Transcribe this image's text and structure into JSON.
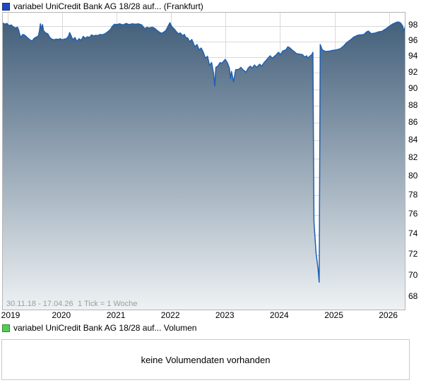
{
  "price_chart": {
    "legend": {
      "label": "variabel UniCredit Bank AG 18/28 auf... (Frankfurt)",
      "marker_color": "#2247c5",
      "marker_border": "#15307d"
    },
    "footer": {
      "period": "30.11.18 - 17.04.26",
      "tick_info": "1 Tick = 1 Woche"
    }
  },
  "volume_chart": {
    "legend": {
      "label": "variabel UniCredit Bank AG 18/28 auf... Volumen",
      "marker_color": "#57c957",
      "marker_border": "#2e8b2e"
    },
    "message": "keine Volumendaten vorhanden"
  },
  "chart_data": {
    "type": "line",
    "title": "variabel UniCredit Bank AG 18/28 auf... (Frankfurt)",
    "subtitle": "",
    "legend_position": "top-left",
    "grid": true,
    "x_axis": {
      "tick_labels": [
        "2019",
        "2020",
        "2021",
        "2022",
        "2023",
        "2024",
        "2025",
        "2026"
      ],
      "start_date": "30.11.18",
      "end_date": "17.04.26",
      "tick_interval": "1 Woche",
      "total_days": 2695
    },
    "y_axis": {
      "tick_labels": [
        98,
        96,
        94,
        92,
        90,
        88,
        86,
        84,
        82,
        80,
        78,
        76,
        74,
        72,
        70,
        68
      ],
      "scale": "log",
      "position": "right",
      "visible_range": [
        66.9,
        99.8
      ]
    },
    "line_color": "#2060b2",
    "fill_gradient_top": "#3e5b77",
    "fill_gradient_bottom": "#eef2f4",
    "grid_color": "#d9d9d9",
    "series": [
      {
        "name": "variabel UniCredit Bank AG 18/28 auf...",
        "x_unit": "weeks_since_30.11.18",
        "points": [
          [
            0,
            98.4
          ],
          [
            2,
            98.25
          ],
          [
            4,
            98.35
          ],
          [
            6,
            98.05
          ],
          [
            8,
            98.15
          ],
          [
            10,
            97.9
          ],
          [
            12,
            97.75
          ],
          [
            14,
            97.85
          ],
          [
            15,
            97.55
          ],
          [
            17,
            96.5
          ],
          [
            19,
            96.9
          ],
          [
            21,
            96.8
          ],
          [
            23,
            96.55
          ],
          [
            26,
            96.2
          ],
          [
            28,
            96.05
          ],
          [
            30,
            96.4
          ],
          [
            32,
            96.55
          ],
          [
            34,
            96.7
          ],
          [
            35,
            97.3
          ],
          [
            36,
            98.3
          ],
          [
            37,
            97.6
          ],
          [
            38,
            98.2
          ],
          [
            39,
            97.4
          ],
          [
            41,
            97.1
          ],
          [
            43,
            97.0
          ],
          [
            45,
            96.5
          ],
          [
            47,
            96.3
          ],
          [
            49,
            96.2
          ],
          [
            51,
            96.3
          ],
          [
            53,
            96.25
          ],
          [
            55,
            96.35
          ],
          [
            57,
            96.2
          ],
          [
            59,
            96.3
          ],
          [
            61,
            96.35
          ],
          [
            63,
            96.7
          ],
          [
            64,
            97.15
          ],
          [
            66,
            96.55
          ],
          [
            67,
            96.2
          ],
          [
            69,
            96.5
          ],
          [
            71,
            96.0
          ],
          [
            73,
            96.35
          ],
          [
            75,
            96.15
          ],
          [
            77,
            96.65
          ],
          [
            79,
            96.4
          ],
          [
            81,
            96.6
          ],
          [
            83,
            96.5
          ],
          [
            85,
            96.85
          ],
          [
            87,
            96.7
          ],
          [
            89,
            96.8
          ],
          [
            91,
            96.75
          ],
          [
            93,
            96.9
          ],
          [
            95,
            96.85
          ],
          [
            98,
            97.0
          ],
          [
            101,
            97.3
          ],
          [
            103,
            97.55
          ],
          [
            105,
            98.0
          ],
          [
            107,
            98.25
          ],
          [
            109,
            98.2
          ],
          [
            112,
            98.3
          ],
          [
            115,
            98.15
          ],
          [
            118,
            98.35
          ],
          [
            121,
            98.2
          ],
          [
            124,
            98.3
          ],
          [
            127,
            98.25
          ],
          [
            130,
            98.3
          ],
          [
            133,
            98.15
          ],
          [
            136,
            97.65
          ],
          [
            138,
            97.85
          ],
          [
            140,
            97.75
          ],
          [
            143,
            97.85
          ],
          [
            145,
            97.75
          ],
          [
            148,
            97.4
          ],
          [
            150,
            97.2
          ],
          [
            152,
            97.05
          ],
          [
            154,
            97.2
          ],
          [
            156,
            97.4
          ],
          [
            158,
            97.9
          ],
          [
            160,
            98.45
          ],
          [
            162,
            97.9
          ],
          [
            164,
            97.65
          ],
          [
            166,
            97.3
          ],
          [
            168,
            97.0
          ],
          [
            170,
            97.1
          ],
          [
            172,
            96.75
          ],
          [
            174,
            96.9
          ],
          [
            175,
            96.55
          ],
          [
            177,
            96.45
          ],
          [
            179,
            95.95
          ],
          [
            181,
            96.25
          ],
          [
            183,
            95.6
          ],
          [
            184,
            95.3
          ],
          [
            186,
            95.6
          ],
          [
            188,
            94.9
          ],
          [
            190,
            95.15
          ],
          [
            192,
            94.6
          ],
          [
            194,
            93.85
          ],
          [
            196,
            94.1
          ],
          [
            198,
            92.95
          ],
          [
            200,
            93.3
          ],
          [
            202,
            91.8
          ],
          [
            203,
            90.4
          ],
          [
            204,
            92.7
          ],
          [
            206,
            92.85
          ],
          [
            208,
            93.3
          ],
          [
            210,
            93.2
          ],
          [
            211,
            93.4
          ],
          [
            213,
            93.7
          ],
          [
            215,
            93.3
          ],
          [
            217,
            92.6
          ],
          [
            218,
            91.3
          ],
          [
            219,
            92.2
          ],
          [
            221,
            90.9
          ],
          [
            223,
            92.4
          ],
          [
            226,
            92.45
          ],
          [
            228,
            92.7
          ],
          [
            230,
            92.4
          ],
          [
            233,
            92.1
          ],
          [
            235,
            92.6
          ],
          [
            237,
            92.85
          ],
          [
            239,
            92.6
          ],
          [
            241,
            93.0
          ],
          [
            243,
            92.7
          ],
          [
            246,
            93.1
          ],
          [
            248,
            92.85
          ],
          [
            250,
            93.25
          ],
          [
            254,
            93.85
          ],
          [
            256,
            94.15
          ],
          [
            258,
            93.85
          ],
          [
            262,
            94.3
          ],
          [
            264,
            94.6
          ],
          [
            266,
            94.3
          ],
          [
            268,
            94.75
          ],
          [
            271,
            94.9
          ],
          [
            273,
            95.3
          ],
          [
            275,
            95.15
          ],
          [
            277,
            94.9
          ],
          [
            279,
            94.7
          ],
          [
            281,
            94.45
          ],
          [
            285,
            94.35
          ],
          [
            287,
            94.3
          ],
          [
            289,
            94.0
          ],
          [
            291,
            94.15
          ],
          [
            292,
            93.85
          ],
          [
            294,
            94.1
          ],
          [
            296,
            94.3
          ],
          [
            297,
            94.6
          ],
          [
            298,
            75.3
          ],
          [
            300,
            72.2
          ],
          [
            302,
            70.6
          ],
          [
            303,
            69.4
          ],
          [
            304,
            95.6
          ],
          [
            306,
            94.9
          ],
          [
            309,
            94.7
          ],
          [
            313,
            94.75
          ],
          [
            316,
            94.85
          ],
          [
            319,
            94.9
          ],
          [
            323,
            95.05
          ],
          [
            326,
            95.35
          ],
          [
            329,
            95.8
          ],
          [
            333,
            96.2
          ],
          [
            336,
            96.55
          ],
          [
            340,
            96.8
          ],
          [
            343,
            96.85
          ],
          [
            346,
            96.9
          ],
          [
            348,
            97.2
          ],
          [
            350,
            97.35
          ],
          [
            353,
            97.0
          ],
          [
            357,
            97.1
          ],
          [
            360,
            97.25
          ],
          [
            363,
            97.3
          ],
          [
            367,
            97.65
          ],
          [
            370,
            97.95
          ],
          [
            373,
            98.25
          ],
          [
            377,
            98.5
          ],
          [
            379,
            98.55
          ],
          [
            381,
            98.4
          ],
          [
            383,
            98.0
          ],
          [
            384,
            97.3
          ],
          [
            385,
            97.8
          ]
        ]
      }
    ],
    "volume": {
      "label": "variabel UniCredit Bank AG 18/28 auf... Volumen",
      "message": "keine Volumendaten vorhanden",
      "data": []
    }
  }
}
